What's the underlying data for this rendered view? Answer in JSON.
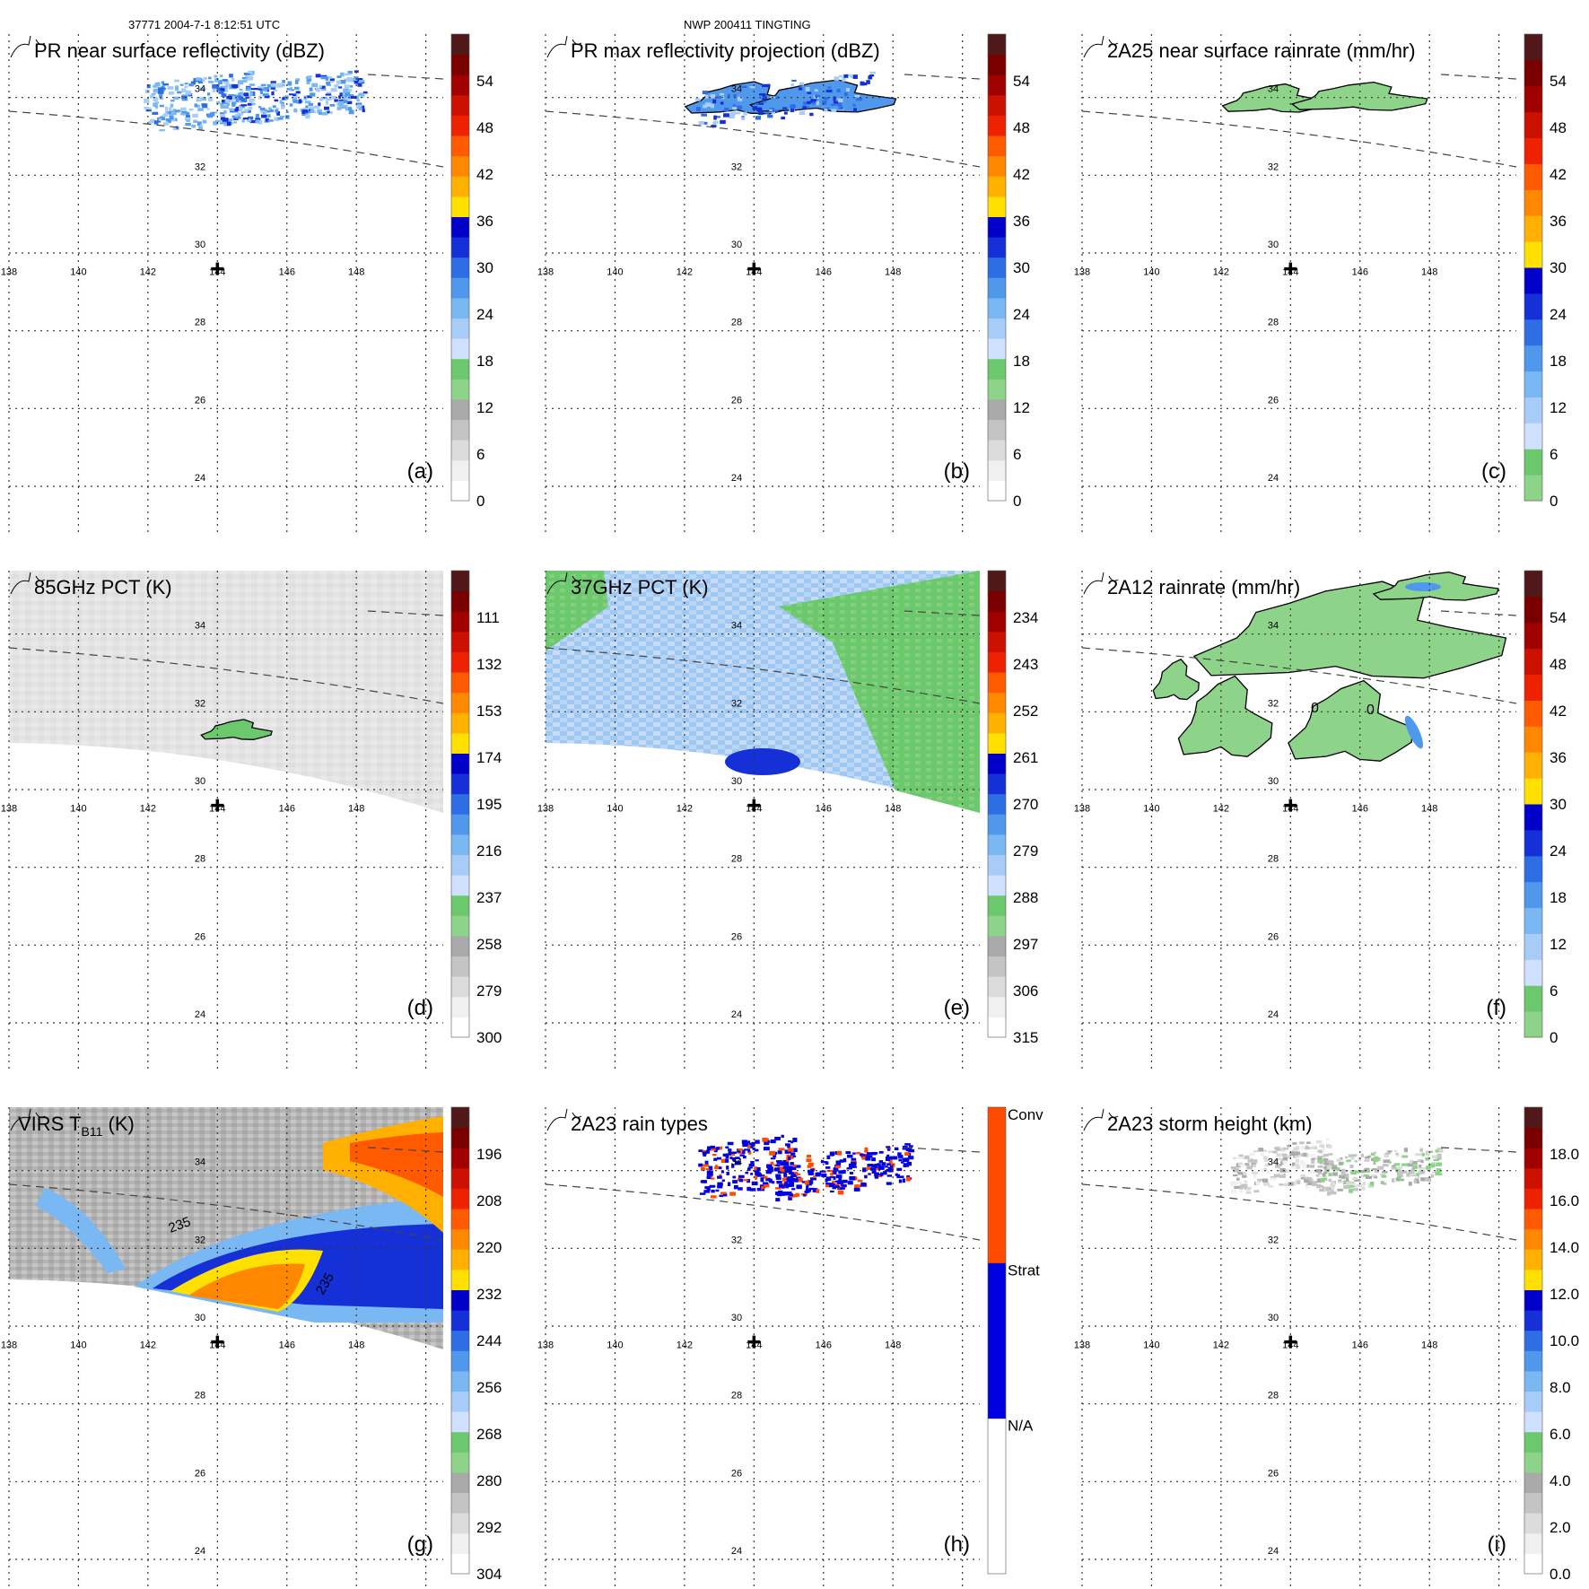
{
  "header": {
    "orbit_time": "37771 2004-7-1 8:12:51 UTC",
    "storm": "NWP 200411 TINGTING"
  },
  "map": {
    "lon_ticks": [
      "138",
      "140",
      "142",
      "144",
      "146",
      "148"
    ],
    "lat_ticks": [
      "34",
      "32",
      "30",
      "28",
      "26",
      "24"
    ],
    "lon_range": [
      138,
      150.5
    ],
    "lat_range": [
      23.4,
      35.4
    ],
    "storm_center": {
      "lon": 144,
      "lat": 29.5
    }
  },
  "colors": {
    "grid": "#333333",
    "contour": "#000000",
    "swath_edge": "#444444"
  },
  "panels": [
    {
      "id": "a",
      "title": "PR near surface reflectivity (dBZ)",
      "panel_label": "(a)",
      "colorbar": {
        "ticks": [
          "54",
          "48",
          "42",
          "36",
          "30",
          "24",
          "18",
          "12",
          "6",
          "0"
        ],
        "colors": [
          "#ffffff",
          "#f0f0f0",
          "#dcdcdc",
          "#c4c4c4",
          "#aaaaaa",
          "#8ed38a",
          "#6cc86c",
          "#d0e0ff",
          "#a8ccf8",
          "#7ab8f4",
          "#4f98ec",
          "#2e6ee4",
          "#1630d8",
          "#0000c8",
          "#ffe000",
          "#ffb000",
          "#ff8800",
          "#ff5a00",
          "#ee2200",
          "#cc1100",
          "#a00000",
          "#7a0000",
          "#501818"
        ]
      }
    },
    {
      "id": "b",
      "title": "PR max reflectivity projection (dBZ)",
      "panel_label": "(b)",
      "colorbar": {
        "ticks": [
          "54",
          "48",
          "42",
          "36",
          "30",
          "24",
          "18",
          "12",
          "6",
          "0"
        ],
        "colors": [
          "#ffffff",
          "#f0f0f0",
          "#dcdcdc",
          "#c4c4c4",
          "#aaaaaa",
          "#8ed38a",
          "#6cc86c",
          "#d0e0ff",
          "#a8ccf8",
          "#7ab8f4",
          "#4f98ec",
          "#2e6ee4",
          "#1630d8",
          "#0000c8",
          "#ffe000",
          "#ffb000",
          "#ff8800",
          "#ff5a00",
          "#ee2200",
          "#cc1100",
          "#a00000",
          "#7a0000",
          "#501818"
        ]
      }
    },
    {
      "id": "c",
      "title": "2A25 near surface rainrate (mm/hr)",
      "panel_label": "(c)",
      "colorbar": {
        "ticks": [
          "54",
          "48",
          "42",
          "36",
          "30",
          "24",
          "18",
          "12",
          "6",
          "0"
        ],
        "colors": [
          "#8ed38a",
          "#6cc86c",
          "#d0e0ff",
          "#a8ccf8",
          "#7ab8f4",
          "#4f98ec",
          "#2e6ee4",
          "#1630d8",
          "#0000c8",
          "#ffe000",
          "#ffb000",
          "#ff8800",
          "#ff5a00",
          "#ee2200",
          "#cc1100",
          "#a00000",
          "#7a0000",
          "#501818"
        ]
      }
    },
    {
      "id": "d",
      "title": "85GHz PCT (K)",
      "panel_label": "(d)",
      "colorbar": {
        "ticks": [
          "111",
          "132",
          "153",
          "174",
          "195",
          "216",
          "237",
          "258",
          "279",
          "300"
        ],
        "colors": [
          "#ffffff",
          "#f0f0f0",
          "#dcdcdc",
          "#c4c4c4",
          "#aaaaaa",
          "#8ed38a",
          "#6cc86c",
          "#d0e0ff",
          "#a8ccf8",
          "#7ab8f4",
          "#4f98ec",
          "#2e6ee4",
          "#1630d8",
          "#0000c8",
          "#ffe000",
          "#ffb000",
          "#ff8800",
          "#ff5a00",
          "#ee2200",
          "#cc1100",
          "#a00000",
          "#7a0000",
          "#501818"
        ]
      }
    },
    {
      "id": "e",
      "title": "37GHz PCT (K)",
      "panel_label": "(e)",
      "colorbar": {
        "ticks": [
          "234",
          "243",
          "252",
          "261",
          "270",
          "279",
          "288",
          "297",
          "306",
          "315"
        ],
        "colors": [
          "#ffffff",
          "#f0f0f0",
          "#dcdcdc",
          "#c4c4c4",
          "#aaaaaa",
          "#8ed38a",
          "#6cc86c",
          "#d0e0ff",
          "#a8ccf8",
          "#7ab8f4",
          "#4f98ec",
          "#2e6ee4",
          "#1630d8",
          "#0000c8",
          "#ffe000",
          "#ffb000",
          "#ff8800",
          "#ff5a00",
          "#ee2200",
          "#cc1100",
          "#a00000",
          "#7a0000",
          "#501818"
        ]
      }
    },
    {
      "id": "f",
      "title": "2A12 rainrate (mm/hr)",
      "panel_label": "(f)",
      "contour_labels": [
        "0",
        "0"
      ],
      "colorbar": {
        "ticks": [
          "54",
          "48",
          "42",
          "36",
          "30",
          "24",
          "18",
          "12",
          "6",
          "0"
        ],
        "colors": [
          "#8ed38a",
          "#6cc86c",
          "#d0e0ff",
          "#a8ccf8",
          "#7ab8f4",
          "#4f98ec",
          "#2e6ee4",
          "#1630d8",
          "#0000c8",
          "#ffe000",
          "#ffb000",
          "#ff8800",
          "#ff5a00",
          "#ee2200",
          "#cc1100",
          "#a00000",
          "#7a0000",
          "#501818"
        ]
      }
    },
    {
      "id": "g",
      "title_main": "VIRS T",
      "title_sub": "B11",
      "title_unit": " (K)",
      "panel_label": "(g)",
      "contour_labels": [
        "235",
        "235"
      ],
      "colorbar": {
        "ticks": [
          "196",
          "208",
          "220",
          "232",
          "244",
          "256",
          "268",
          "280",
          "292",
          "304"
        ],
        "colors": [
          "#ffffff",
          "#f0f0f0",
          "#dcdcdc",
          "#c4c4c4",
          "#aaaaaa",
          "#8ed38a",
          "#6cc86c",
          "#d0e0ff",
          "#a8ccf8",
          "#7ab8f4",
          "#4f98ec",
          "#2e6ee4",
          "#1630d8",
          "#0000c8",
          "#ffe000",
          "#ffb000",
          "#ff8800",
          "#ff5a00",
          "#ee2200",
          "#cc1100",
          "#a00000",
          "#7a0000",
          "#501818"
        ]
      }
    },
    {
      "id": "h",
      "title": "2A23 rain types",
      "panel_label": "(h)",
      "colorbar": {
        "ticks": [
          "Conv",
          "Strat",
          "N/A"
        ],
        "colors": [
          "#ffffff",
          "#0000e0",
          "#ff4a00"
        ]
      }
    },
    {
      "id": "i",
      "title": "2A23 storm height (km)",
      "panel_label": "(i)",
      "colorbar": {
        "ticks": [
          "18.0",
          "16.0",
          "14.0",
          "12.0",
          "10.0",
          "8.0",
          "6.0",
          "4.0",
          "2.0",
          "0.0"
        ],
        "colors": [
          "#ffffff",
          "#f0f0f0",
          "#dcdcdc",
          "#c4c4c4",
          "#aaaaaa",
          "#8ed38a",
          "#6cc86c",
          "#d0e0ff",
          "#a8ccf8",
          "#7ab8f4",
          "#4f98ec",
          "#2e6ee4",
          "#1630d8",
          "#0000c8",
          "#ffe000",
          "#ffb000",
          "#ff8800",
          "#ff5a00",
          "#ee2200",
          "#cc1100",
          "#a00000",
          "#7a0000",
          "#501818"
        ]
      }
    }
  ]
}
